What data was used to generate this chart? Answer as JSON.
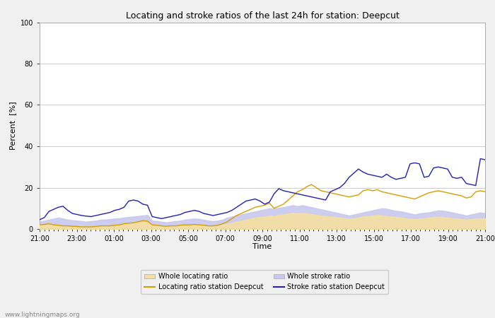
{
  "title": "Locating and stroke ratios of the last 24h for station: Deepcut",
  "xlabel": "Time",
  "ylabel": "Percent  [%]",
  "xlim": [
    0,
    24
  ],
  "ylim": [
    0,
    100
  ],
  "yticks": [
    0,
    20,
    40,
    60,
    80,
    100
  ],
  "xtick_labels": [
    "21:00",
    "23:00",
    "01:00",
    "03:00",
    "05:00",
    "07:00",
    "09:00",
    "11:00",
    "13:00",
    "15:00",
    "17:00",
    "19:00",
    "21:00"
  ],
  "xtick_positions": [
    0,
    2,
    4,
    6,
    8,
    10,
    12,
    14,
    16,
    18,
    20,
    22,
    24
  ],
  "background_color": "#f0f0f0",
  "plot_bg_color": "#ffffff",
  "grid_color": "#cccccc",
  "whole_locating_fill": "#f5dfa0",
  "whole_stroke_fill": "#c8c8ee",
  "locating_line_color": "#d4a000",
  "stroke_line_color": "#2020bb",
  "watermark": "www.lightningmaps.org",
  "legend_labels": [
    "Whole locating ratio",
    "Locating ratio station Deepcut",
    "Whole stroke ratio",
    "Stroke ratio station Deepcut"
  ],
  "whole_locating": [
    2.0,
    2.2,
    2.5,
    2.0,
    1.8,
    1.5,
    1.5,
    1.3,
    1.2,
    1.0,
    1.0,
    1.0,
    1.2,
    1.5,
    1.5,
    1.5,
    1.8,
    2.0,
    2.5,
    2.8,
    3.0,
    3.2,
    3.5,
    3.5,
    2.0,
    1.8,
    1.5,
    1.3,
    1.5,
    1.5,
    1.8,
    2.0,
    2.0,
    2.2,
    2.0,
    1.8,
    1.5,
    1.5,
    1.5,
    2.0,
    2.5,
    3.0,
    3.5,
    4.0,
    4.5,
    5.0,
    5.5,
    5.8,
    6.0,
    6.5,
    6.2,
    6.8,
    7.0,
    7.5,
    7.8,
    7.5,
    7.8,
    7.5,
    7.2,
    6.8,
    6.5,
    6.2,
    6.0,
    5.8,
    5.5,
    5.2,
    5.0,
    5.2,
    5.5,
    6.0,
    6.2,
    6.5,
    6.8,
    6.5,
    6.2,
    6.0,
    5.8,
    5.5,
    5.2,
    5.0,
    4.8,
    5.0,
    5.2,
    5.5,
    5.8,
    6.0,
    5.8,
    5.5,
    5.2,
    5.0,
    4.8,
    4.5,
    4.8,
    5.0,
    5.2,
    5.0
  ],
  "whole_stroke": [
    3.5,
    4.0,
    4.5,
    5.0,
    5.5,
    5.0,
    4.5,
    4.2,
    4.0,
    3.8,
    3.5,
    3.8,
    4.0,
    4.5,
    4.5,
    4.8,
    5.0,
    5.2,
    5.5,
    5.8,
    6.0,
    6.2,
    6.5,
    6.8,
    4.0,
    3.8,
    3.5,
    3.2,
    3.5,
    3.8,
    4.0,
    4.5,
    4.8,
    5.0,
    4.8,
    4.5,
    4.0,
    3.8,
    4.0,
    4.5,
    5.5,
    6.0,
    6.5,
    7.0,
    7.5,
    8.0,
    8.5,
    9.0,
    9.5,
    10.0,
    9.8,
    10.2,
    10.5,
    11.0,
    11.5,
    11.0,
    11.5,
    11.0,
    10.5,
    10.0,
    9.5,
    9.0,
    8.5,
    8.0,
    7.5,
    7.0,
    6.5,
    7.0,
    7.5,
    8.0,
    8.5,
    9.0,
    9.5,
    10.0,
    9.8,
    9.2,
    8.8,
    8.5,
    8.0,
    7.5,
    7.0,
    7.5,
    7.8,
    8.0,
    8.5,
    9.0,
    8.8,
    8.5,
    8.0,
    7.5,
    7.0,
    6.5,
    7.0,
    7.5,
    8.0,
    7.5
  ],
  "locating_station": [
    2.0,
    2.2,
    2.5,
    2.0,
    1.8,
    1.5,
    1.5,
    1.3,
    1.2,
    1.0,
    1.0,
    1.0,
    1.2,
    1.5,
    1.5,
    1.5,
    1.8,
    2.0,
    2.5,
    2.8,
    3.0,
    3.5,
    4.0,
    3.8,
    2.0,
    1.8,
    1.5,
    1.3,
    1.5,
    1.5,
    1.8,
    2.0,
    2.0,
    2.2,
    2.0,
    1.8,
    1.5,
    1.5,
    1.8,
    2.5,
    3.5,
    5.0,
    6.5,
    7.5,
    8.5,
    9.5,
    10.5,
    11.0,
    11.5,
    12.5,
    10.0,
    11.0,
    12.0,
    14.0,
    16.0,
    18.0,
    19.0,
    20.5,
    21.5,
    20.0,
    18.5,
    18.0,
    17.5,
    17.0,
    16.5,
    16.0,
    15.5,
    16.0,
    16.5,
    18.5,
    19.0,
    18.5,
    19.0,
    18.0,
    17.5,
    17.0,
    16.5,
    16.0,
    15.5,
    15.0,
    14.5,
    15.5,
    16.5,
    17.5,
    18.0,
    18.5,
    18.0,
    17.5,
    17.0,
    16.5,
    16.0,
    15.0,
    15.5,
    18.0,
    18.5,
    18.0
  ],
  "stroke_station": [
    4.5,
    5.5,
    8.5,
    9.5,
    10.5,
    11.0,
    9.0,
    7.5,
    7.0,
    6.5,
    6.2,
    6.0,
    6.5,
    7.0,
    7.5,
    8.0,
    9.0,
    9.5,
    10.5,
    13.5,
    14.0,
    13.5,
    12.0,
    11.5,
    6.0,
    5.5,
    5.0,
    5.5,
    6.0,
    6.5,
    7.0,
    8.0,
    8.5,
    9.0,
    8.5,
    7.5,
    7.0,
    6.5,
    7.0,
    7.5,
    8.0,
    9.0,
    10.5,
    12.0,
    13.5,
    14.0,
    14.5,
    13.5,
    12.0,
    13.0,
    17.0,
    19.5,
    18.5,
    18.0,
    17.5,
    17.0,
    16.5,
    16.0,
    15.5,
    15.0,
    14.5,
    14.0,
    18.0,
    19.0,
    20.0,
    22.0,
    25.0,
    27.0,
    29.0,
    27.5,
    26.5,
    26.0,
    25.5,
    25.0,
    26.5,
    25.0,
    24.0,
    24.5,
    25.0,
    31.5,
    32.0,
    31.5,
    25.0,
    25.5,
    29.5,
    30.0,
    29.5,
    29.0,
    25.0,
    24.5,
    25.0,
    22.0,
    21.5,
    21.0,
    34.0,
    33.5
  ]
}
